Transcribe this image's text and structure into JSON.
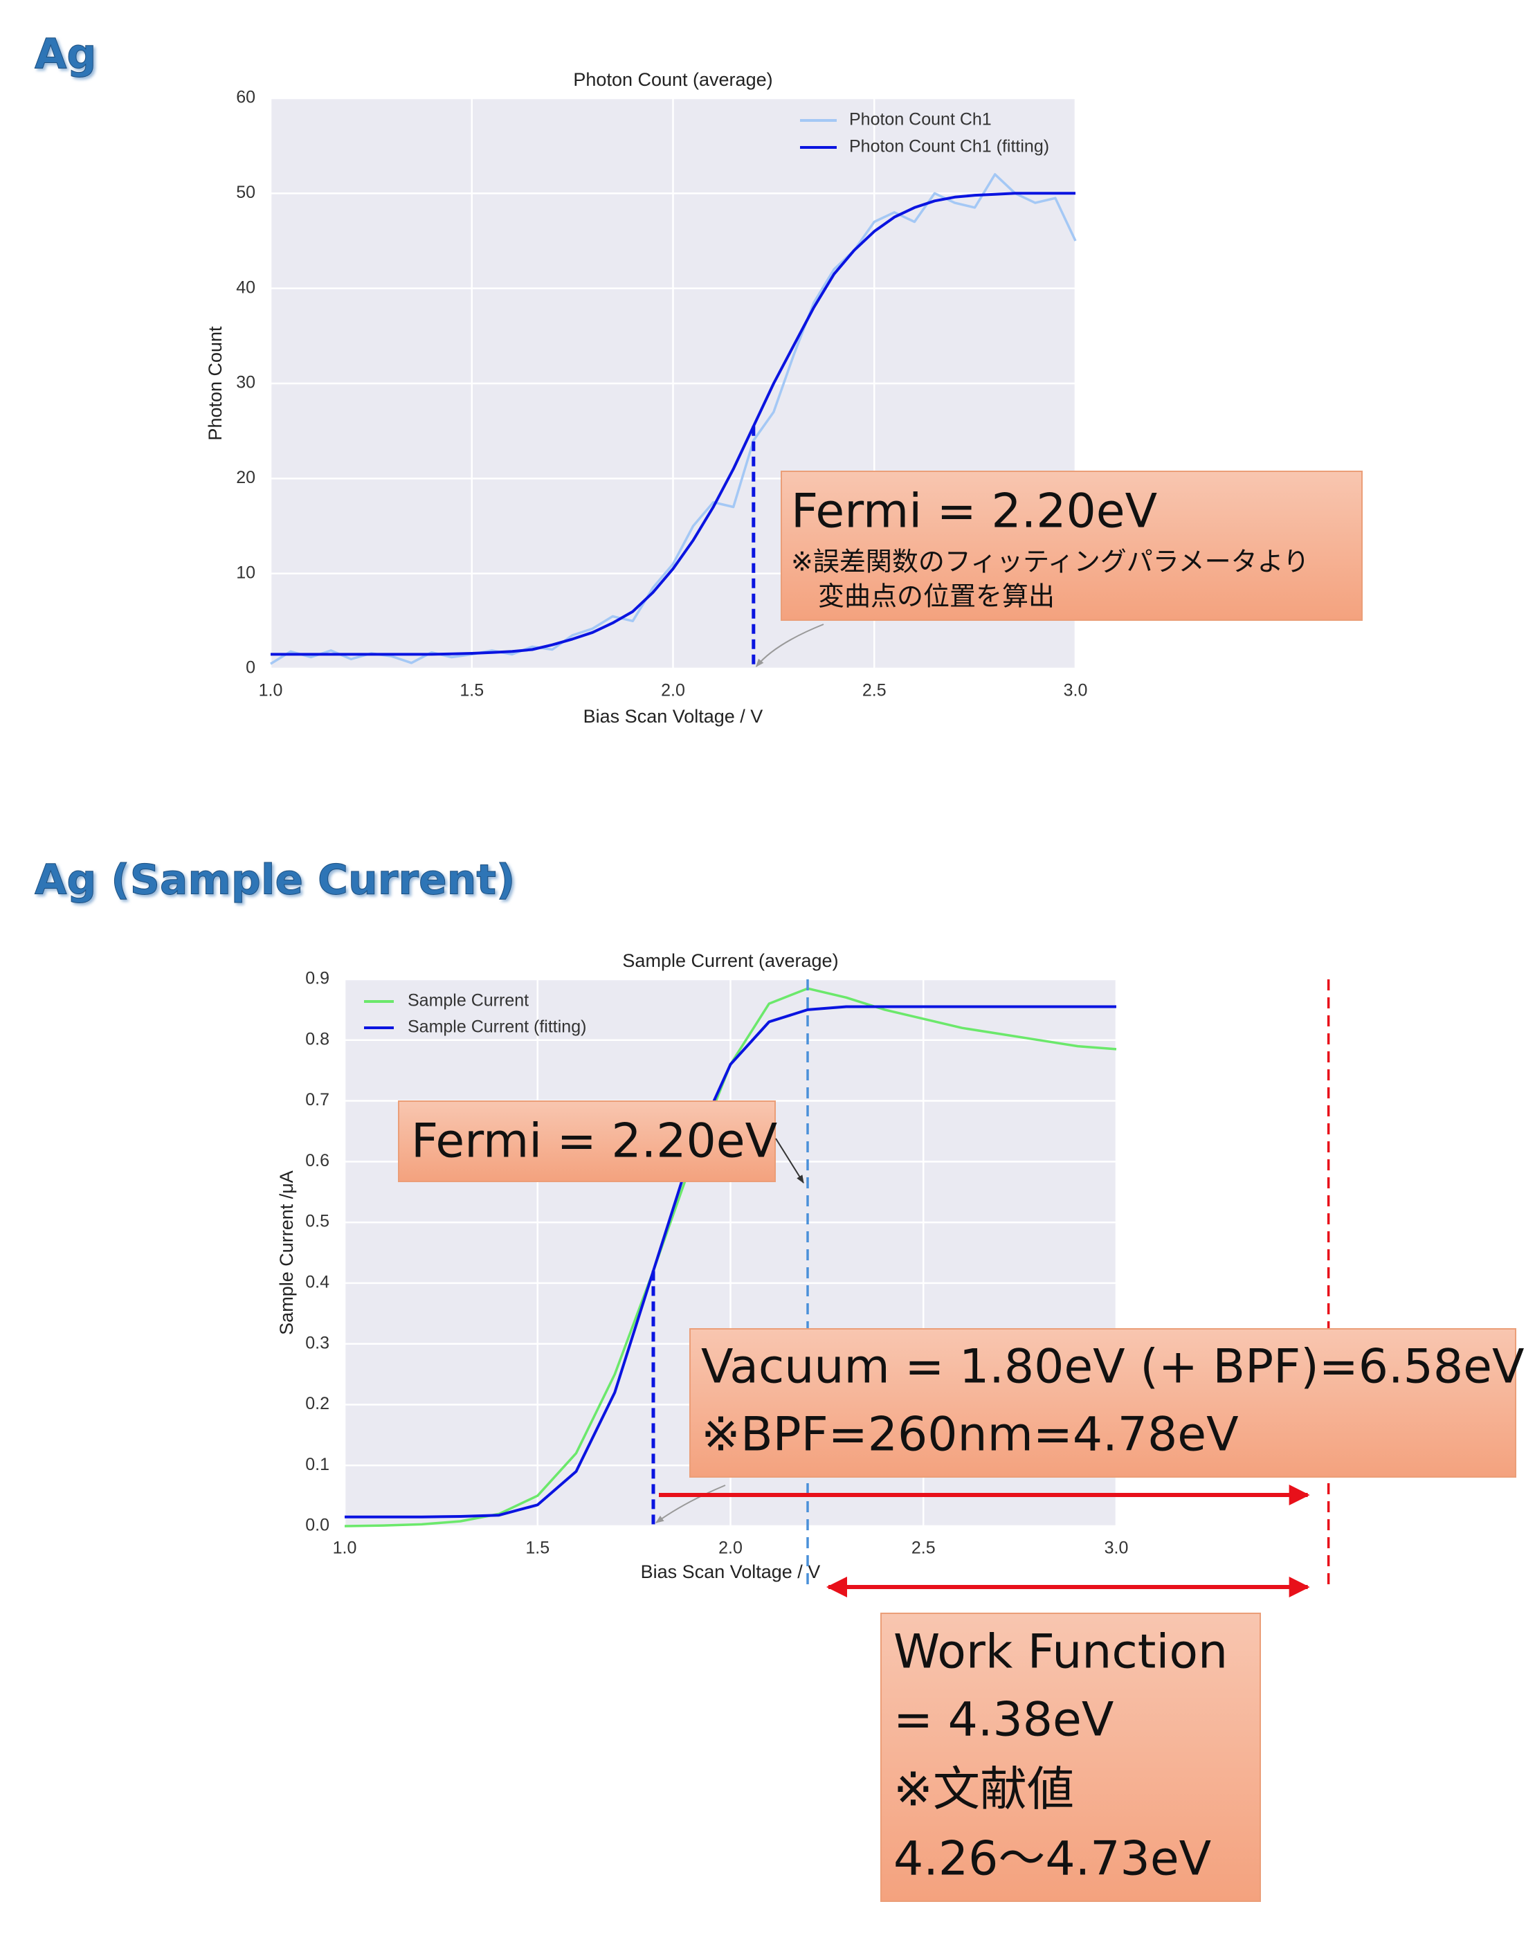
{
  "chart_data": [
    {
      "type": "line",
      "section_title": "Ag",
      "title": "Photon Count (average)",
      "xlabel": "Bias Scan Voltage / V",
      "ylabel": "Photon Count",
      "x": [
        1.0,
        1.05,
        1.1,
        1.15,
        1.2,
        1.25,
        1.3,
        1.35,
        1.4,
        1.45,
        1.5,
        1.55,
        1.6,
        1.65,
        1.7,
        1.75,
        1.8,
        1.85,
        1.9,
        1.95,
        2.0,
        2.05,
        2.1,
        2.15,
        2.2,
        2.25,
        2.3,
        2.35,
        2.4,
        2.45,
        2.5,
        2.55,
        2.6,
        2.65,
        2.7,
        2.75,
        2.8,
        2.85,
        2.9,
        2.95,
        3.0
      ],
      "series": [
        {
          "name": "Photon Count Ch1",
          "color": "#a4c8f5",
          "values": [
            0.5,
            1.8,
            1.2,
            1.9,
            1.0,
            1.6,
            1.3,
            0.6,
            1.7,
            1.2,
            1.5,
            1.9,
            1.5,
            2.3,
            2.0,
            3.5,
            4.2,
            5.5,
            5.0,
            8.5,
            11,
            15,
            17.5,
            17,
            24,
            27,
            33,
            38.5,
            42,
            44,
            47,
            48,
            47,
            50,
            49,
            48.5,
            52,
            50,
            49,
            49.5,
            45
          ]
        },
        {
          "name": "Photon Count Ch1 (fitting)",
          "color": "#0a14e0",
          "values": [
            1.5,
            1.5,
            1.5,
            1.5,
            1.5,
            1.5,
            1.5,
            1.5,
            1.5,
            1.55,
            1.6,
            1.7,
            1.8,
            2.0,
            2.5,
            3.1,
            3.8,
            4.8,
            6.0,
            8.0,
            10.5,
            13.5,
            17,
            21,
            25.5,
            30,
            34,
            38,
            41.5,
            44,
            46,
            47.5,
            48.5,
            49.2,
            49.6,
            49.8,
            49.9,
            50,
            50,
            50,
            50
          ]
        }
      ],
      "xlim": [
        1.0,
        3.0
      ],
      "ylim": [
        0,
        60
      ],
      "xticks": [
        {
          "value": 1,
          "label": "1.0"
        },
        1.5,
        {
          "value": 2,
          "label": "2.0"
        },
        2.5,
        {
          "value": 3,
          "label": "3.0"
        }
      ],
      "yticks": [
        0,
        10,
        20,
        30,
        40,
        50,
        60
      ],
      "grid": true,
      "legend": "upper right",
      "markers": [
        {
          "x": 2.2,
          "color": "#0a14e0"
        }
      ],
      "annotations": [
        {
          "lines": [
            "Fermi = 2.20eV",
            "※誤差関数のフィッティングパラメータより",
            "変曲点の位置を算出"
          ]
        }
      ]
    },
    {
      "type": "line",
      "section_title": "Ag (Sample Current)",
      "title": "Sample Current (average)",
      "xlabel": "Bias Scan Voltage / V",
      "ylabel": "Sample Current /μA",
      "x": [
        1.0,
        1.1,
        1.2,
        1.3,
        1.4,
        1.5,
        1.6,
        1.7,
        1.8,
        1.9,
        2.0,
        2.1,
        2.2,
        2.3,
        2.4,
        2.5,
        2.6,
        2.7,
        2.8,
        2.9,
        3.0
      ],
      "series": [
        {
          "name": "Sample Current",
          "color": "#6be86b",
          "values": [
            0.0,
            0.001,
            0.003,
            0.008,
            0.02,
            0.05,
            0.12,
            0.25,
            0.42,
            0.6,
            0.76,
            0.86,
            0.885,
            0.87,
            0.85,
            0.835,
            0.82,
            0.81,
            0.8,
            0.79,
            0.785
          ]
        },
        {
          "name": "Sample Current (fitting)",
          "color": "#0a14e0",
          "values": [
            0.015,
            0.015,
            0.015,
            0.016,
            0.018,
            0.035,
            0.09,
            0.22,
            0.42,
            0.62,
            0.76,
            0.83,
            0.85,
            0.855,
            0.855,
            0.855,
            0.855,
            0.855,
            0.855,
            0.855,
            0.855
          ]
        }
      ],
      "xlim": [
        1.0,
        3.0
      ],
      "ylim": [
        0,
        0.9
      ],
      "xticks": [
        {
          "value": 1,
          "label": "1.0"
        },
        1.5,
        {
          "value": 2,
          "label": "2.0"
        },
        2.5,
        {
          "value": 3,
          "label": "3.0"
        }
      ],
      "yticks": [
        {
          "value": 0,
          "label": "0.0"
        },
        0.1,
        0.2,
        0.3,
        0.4,
        0.5,
        0.6,
        0.7,
        0.8,
        0.9
      ],
      "grid": true,
      "legend": "upper left",
      "markers": [
        {
          "x": 1.8,
          "color": "#0a14e0"
        },
        {
          "x": 2.2,
          "color": "#4a90d9"
        },
        {
          "x": 3.55,
          "color": "#e8101a"
        }
      ],
      "annotations": [
        {
          "lines": [
            "Fermi = 2.20eV"
          ]
        },
        {
          "lines": [
            "Vacuum = 1.80eV (+ BPF)=6.58eV",
            "※BPF=260nm=4.78eV"
          ]
        },
        {
          "lines": [
            "Work Function",
            "= 4.38eV",
            "※文献値",
            "4.26～4.73eV"
          ]
        }
      ]
    }
  ]
}
